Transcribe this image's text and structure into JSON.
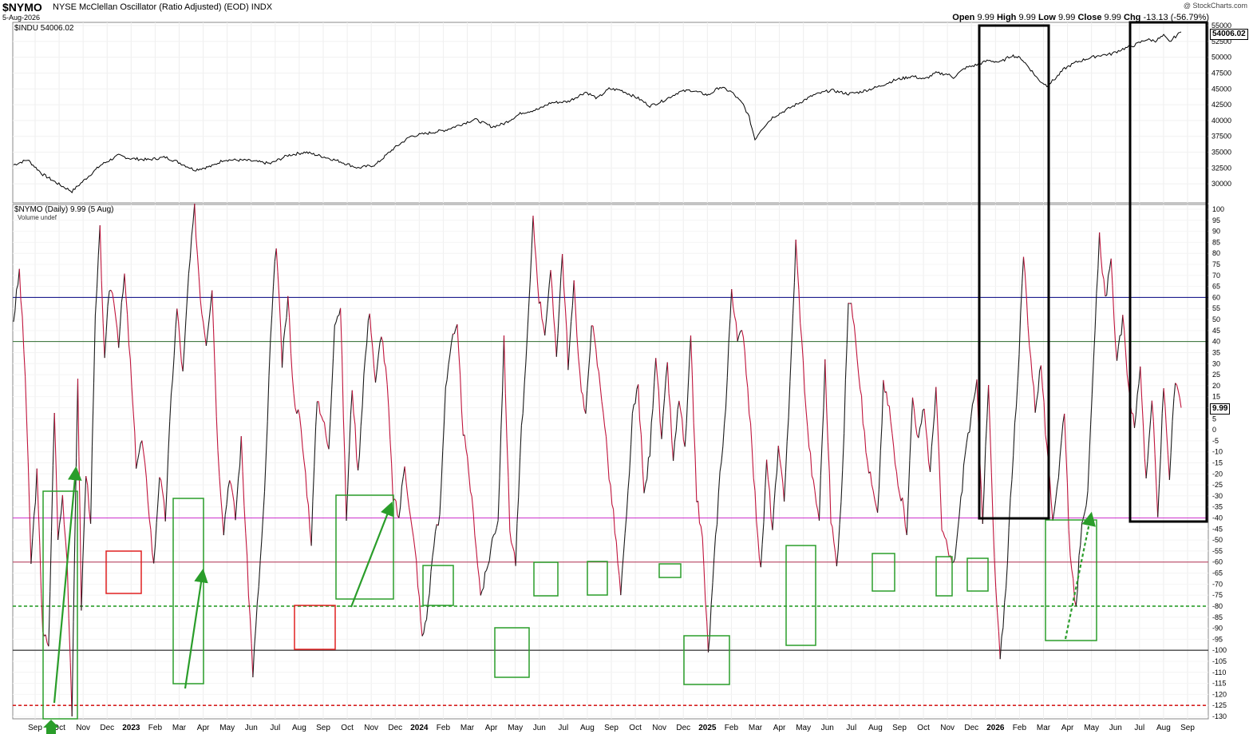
{
  "header": {
    "symbol": "$NYMO",
    "description": "NYSE McClellan Oscillator (Ratio Adjusted) (EOD)  INDX",
    "date": "5-Aug-2026",
    "watermark": "@ StockCharts.com",
    "open_label": "Open",
    "open": "9.99",
    "high_label": "High",
    "high": "9.99",
    "low_label": "Low",
    "low": "9.99",
    "close_label": "Close",
    "close": "9.99",
    "chg_label": "Chg",
    "chg": "-13.13 (-56.79%)"
  },
  "upper_panel": {
    "legend": "$INDU 54006.02",
    "last_value": "54006.02"
  },
  "lower_panel": {
    "legend": "$NYMO (Daily) 9.99 (5 Aug)",
    "volume_note": "Volume undef",
    "last_value": "9.99"
  },
  "chart_data": [
    {
      "type": "line",
      "name": "$INDU",
      "ylim": [
        28000,
        55000
      ],
      "yticks": [
        30000,
        32500,
        35000,
        37500,
        40000,
        42500,
        45000,
        47500,
        50000,
        52500,
        55000
      ],
      "points": [
        [
          0,
          33000
        ],
        [
          0.012,
          33800
        ],
        [
          0.025,
          31500
        ],
        [
          0.04,
          29800
        ],
        [
          0.05,
          28800
        ],
        [
          0.06,
          30500
        ],
        [
          0.075,
          33000
        ],
        [
          0.09,
          34500
        ],
        [
          0.1,
          34000
        ],
        [
          0.115,
          33800
        ],
        [
          0.13,
          34200
        ],
        [
          0.14,
          33500
        ],
        [
          0.155,
          32200
        ],
        [
          0.17,
          32800
        ],
        [
          0.18,
          33800
        ],
        [
          0.2,
          33700
        ],
        [
          0.22,
          33200
        ],
        [
          0.235,
          34500
        ],
        [
          0.25,
          35000
        ],
        [
          0.265,
          34300
        ],
        [
          0.28,
          33500
        ],
        [
          0.295,
          32500
        ],
        [
          0.31,
          33000
        ],
        [
          0.325,
          35500
        ],
        [
          0.34,
          37500
        ],
        [
          0.355,
          38000
        ],
        [
          0.37,
          38500
        ],
        [
          0.385,
          39500
        ],
        [
          0.395,
          40200
        ],
        [
          0.41,
          39000
        ],
        [
          0.42,
          39500
        ],
        [
          0.435,
          41200
        ],
        [
          0.45,
          41800
        ],
        [
          0.46,
          42800
        ],
        [
          0.475,
          43000
        ],
        [
          0.49,
          44500
        ],
        [
          0.5,
          43500
        ],
        [
          0.51,
          45000
        ],
        [
          0.52,
          44800
        ],
        [
          0.535,
          43500
        ],
        [
          0.545,
          42300
        ],
        [
          0.555,
          43000
        ],
        [
          0.57,
          44500
        ],
        [
          0.58,
          44800
        ],
        [
          0.595,
          44000
        ],
        [
          0.605,
          45300
        ],
        [
          0.615,
          44500
        ],
        [
          0.625,
          42500
        ],
        [
          0.63,
          40500
        ],
        [
          0.635,
          37000
        ],
        [
          0.64,
          38500
        ],
        [
          0.65,
          40500
        ],
        [
          0.66,
          41500
        ],
        [
          0.67,
          42500
        ],
        [
          0.685,
          44000
        ],
        [
          0.7,
          44800
        ],
        [
          0.715,
          44200
        ],
        [
          0.725,
          44500
        ],
        [
          0.74,
          45300
        ],
        [
          0.755,
          46400
        ],
        [
          0.77,
          47000
        ],
        [
          0.78,
          46500
        ],
        [
          0.79,
          47500
        ],
        [
          0.8,
          47300
        ],
        [
          0.805,
          46800
        ],
        [
          0.815,
          48300
        ],
        [
          0.825,
          48800
        ],
        [
          0.835,
          49500
        ],
        [
          0.845,
          49200
        ],
        [
          0.855,
          50300
        ],
        [
          0.863,
          49800
        ],
        [
          0.87,
          48300
        ],
        [
          0.878,
          46400
        ],
        [
          0.885,
          45500
        ],
        [
          0.892,
          46600
        ],
        [
          0.9,
          48200
        ],
        [
          0.91,
          49200
        ],
        [
          0.92,
          49800
        ],
        [
          0.93,
          50300
        ],
        [
          0.94,
          50500
        ],
        [
          0.95,
          51300
        ],
        [
          0.96,
          51900
        ],
        [
          0.97,
          52800
        ],
        [
          0.978,
          52600
        ],
        [
          0.985,
          53400
        ],
        [
          0.99,
          52400
        ],
        [
          0.994,
          53100
        ],
        [
          1.0,
          54006
        ]
      ]
    },
    {
      "type": "line",
      "name": "$NYMO",
      "ylim": [
        -130,
        100
      ],
      "yticks": [
        100,
        95,
        90,
        85,
        80,
        75,
        70,
        65,
        60,
        55,
        50,
        45,
        40,
        35,
        30,
        25,
        20,
        15,
        10,
        5,
        0,
        -5,
        -10,
        -15,
        -20,
        -25,
        -30,
        -35,
        -40,
        -45,
        -50,
        -55,
        -60,
        -65,
        -70,
        -75,
        -80,
        -85,
        -90,
        -95,
        -100,
        -105,
        -110,
        -115,
        -120,
        -125,
        -130
      ],
      "horizontal_lines": [
        {
          "value": 60,
          "color": "#000080",
          "style": "solid"
        },
        {
          "value": 40,
          "color": "#2e6b2e",
          "style": "solid"
        },
        {
          "value": -40,
          "color": "#cc33cc",
          "style": "solid"
        },
        {
          "value": -60,
          "color": "#b03050",
          "style": "solid"
        },
        {
          "value": -80,
          "color": "#2a9d2a",
          "style": "dashed"
        },
        {
          "value": -100,
          "color": "#000000",
          "style": "solid"
        },
        {
          "value": -125,
          "color": "#d62020",
          "style": "dashed"
        }
      ],
      "points": [
        [
          0,
          50
        ],
        [
          0.005,
          72
        ],
        [
          0.01,
          25
        ],
        [
          0.015,
          -60
        ],
        [
          0.02,
          -20
        ],
        [
          0.025,
          -90
        ],
        [
          0.03,
          -100
        ],
        [
          0.035,
          10
        ],
        [
          0.038,
          -50
        ],
        [
          0.042,
          -30
        ],
        [
          0.046,
          -60
        ],
        [
          0.05,
          -128
        ],
        [
          0.055,
          25
        ],
        [
          0.058,
          -80
        ],
        [
          0.062,
          -20
        ],
        [
          0.066,
          -40
        ],
        [
          0.07,
          50
        ],
        [
          0.074,
          90
        ],
        [
          0.078,
          30
        ],
        [
          0.082,
          65
        ],
        [
          0.086,
          60
        ],
        [
          0.09,
          40
        ],
        [
          0.095,
          70
        ],
        [
          0.1,
          30
        ],
        [
          0.105,
          -15
        ],
        [
          0.11,
          -5
        ],
        [
          0.115,
          -30
        ],
        [
          0.12,
          -62
        ],
        [
          0.125,
          -20
        ],
        [
          0.13,
          -40
        ],
        [
          0.135,
          15
        ],
        [
          0.14,
          55
        ],
        [
          0.145,
          25
        ],
        [
          0.15,
          70
        ],
        [
          0.155,
          100
        ],
        [
          0.16,
          60
        ],
        [
          0.165,
          40
        ],
        [
          0.17,
          65
        ],
        [
          0.175,
          -10
        ],
        [
          0.18,
          -45
        ],
        [
          0.185,
          -20
        ],
        [
          0.19,
          -40
        ],
        [
          0.195,
          -5
        ],
        [
          0.2,
          -60
        ],
        [
          0.205,
          -110
        ],
        [
          0.21,
          -70
        ],
        [
          0.215,
          -30
        ],
        [
          0.22,
          40
        ],
        [
          0.225,
          85
        ],
        [
          0.23,
          30
        ],
        [
          0.235,
          60
        ],
        [
          0.24,
          15
        ],
        [
          0.245,
          5
        ],
        [
          0.25,
          -20
        ],
        [
          0.255,
          -50
        ],
        [
          0.26,
          15
        ],
        [
          0.265,
          5
        ],
        [
          0.27,
          -10
        ],
        [
          0.275,
          50
        ],
        [
          0.28,
          55
        ],
        [
          0.285,
          -40
        ],
        [
          0.29,
          20
        ],
        [
          0.295,
          -20
        ],
        [
          0.3,
          25
        ],
        [
          0.305,
          55
        ],
        [
          0.31,
          20
        ],
        [
          0.315,
          45
        ],
        [
          0.32,
          20
        ],
        [
          0.325,
          -30
        ],
        [
          0.33,
          -40
        ],
        [
          0.335,
          -15
        ],
        [
          0.34,
          -40
        ],
        [
          0.345,
          -60
        ],
        [
          0.35,
          -95
        ],
        [
          0.355,
          -80
        ],
        [
          0.36,
          -50
        ],
        [
          0.365,
          -40
        ],
        [
          0.37,
          20
        ],
        [
          0.375,
          40
        ],
        [
          0.38,
          45
        ],
        [
          0.385,
          0
        ],
        [
          0.39,
          -20
        ],
        [
          0.395,
          -45
        ],
        [
          0.4,
          -75
        ],
        [
          0.405,
          -65
        ],
        [
          0.41,
          -50
        ],
        [
          0.415,
          -40
        ],
        [
          0.42,
          40
        ],
        [
          0.425,
          -45
        ],
        [
          0.43,
          -60
        ],
        [
          0.435,
          0
        ],
        [
          0.44,
          40
        ],
        [
          0.445,
          95
        ],
        [
          0.45,
          60
        ],
        [
          0.455,
          45
        ],
        [
          0.46,
          70
        ],
        [
          0.465,
          35
        ],
        [
          0.47,
          80
        ],
        [
          0.475,
          30
        ],
        [
          0.48,
          65
        ],
        [
          0.485,
          25
        ],
        [
          0.49,
          5
        ],
        [
          0.495,
          50
        ],
        [
          0.5,
          30
        ],
        [
          0.505,
          10
        ],
        [
          0.51,
          -20
        ],
        [
          0.515,
          -45
        ],
        [
          0.52,
          -75
        ],
        [
          0.525,
          -40
        ],
        [
          0.53,
          5
        ],
        [
          0.535,
          20
        ],
        [
          0.54,
          -30
        ],
        [
          0.545,
          -10
        ],
        [
          0.55,
          35
        ],
        [
          0.555,
          -5
        ],
        [
          0.56,
          30
        ],
        [
          0.565,
          -15
        ],
        [
          0.57,
          15
        ],
        [
          0.575,
          -10
        ],
        [
          0.58,
          40
        ],
        [
          0.585,
          -30
        ],
        [
          0.59,
          -50
        ],
        [
          0.595,
          -102
        ],
        [
          0.6,
          -60
        ],
        [
          0.605,
          -20
        ],
        [
          0.61,
          10
        ],
        [
          0.615,
          65
        ],
        [
          0.62,
          40
        ],
        [
          0.625,
          45
        ],
        [
          0.63,
          10
        ],
        [
          0.635,
          -30
        ],
        [
          0.64,
          -65
        ],
        [
          0.645,
          -15
        ],
        [
          0.65,
          -45
        ],
        [
          0.655,
          -10
        ],
        [
          0.66,
          -30
        ],
        [
          0.665,
          20
        ],
        [
          0.67,
          85
        ],
        [
          0.675,
          40
        ],
        [
          0.68,
          0
        ],
        [
          0.685,
          -25
        ],
        [
          0.69,
          -40
        ],
        [
          0.695,
          30
        ],
        [
          0.7,
          -40
        ],
        [
          0.705,
          -62
        ],
        [
          0.71,
          -20
        ],
        [
          0.715,
          60
        ],
        [
          0.72,
          50
        ],
        [
          0.725,
          20
        ],
        [
          0.73,
          -10
        ],
        [
          0.735,
          -25
        ],
        [
          0.74,
          -40
        ],
        [
          0.745,
          20
        ],
        [
          0.75,
          10
        ],
        [
          0.755,
          -15
        ],
        [
          0.76,
          -30
        ],
        [
          0.765,
          -45
        ],
        [
          0.77,
          15
        ],
        [
          0.775,
          -5
        ],
        [
          0.78,
          10
        ],
        [
          0.785,
          -20
        ],
        [
          0.79,
          20
        ],
        [
          0.795,
          -45
        ],
        [
          0.8,
          -55
        ],
        [
          0.805,
          -62
        ],
        [
          0.81,
          -40
        ],
        [
          0.815,
          -10
        ],
        [
          0.82,
          5
        ],
        [
          0.825,
          20
        ],
        [
          0.83,
          -40
        ],
        [
          0.835,
          20
        ],
        [
          0.84,
          -60
        ],
        [
          0.845,
          -105
        ],
        [
          0.85,
          -70
        ],
        [
          0.855,
          -20
        ],
        [
          0.86,
          20
        ],
        [
          0.865,
          80
        ],
        [
          0.87,
          40
        ],
        [
          0.875,
          10
        ],
        [
          0.88,
          30
        ],
        [
          0.885,
          -10
        ],
        [
          0.89,
          -40
        ],
        [
          0.895,
          -20
        ],
        [
          0.9,
          10
        ],
        [
          0.905,
          -60
        ],
        [
          0.91,
          -80
        ],
        [
          0.915,
          -40
        ],
        [
          0.92,
          -30
        ],
        [
          0.925,
          30
        ],
        [
          0.93,
          88
        ],
        [
          0.935,
          60
        ],
        [
          0.94,
          75
        ],
        [
          0.945,
          30
        ],
        [
          0.95,
          50
        ],
        [
          0.955,
          20
        ],
        [
          0.96,
          0
        ],
        [
          0.965,
          30
        ],
        [
          0.97,
          -25
        ],
        [
          0.975,
          15
        ],
        [
          0.98,
          -40
        ],
        [
          0.985,
          20
        ],
        [
          0.99,
          -20
        ],
        [
          0.995,
          22
        ],
        [
          1.0,
          9.99
        ]
      ]
    }
  ],
  "x_axis": {
    "labels": [
      "Sep",
      "Oct",
      "Nov",
      "Dec",
      "2023",
      "Feb",
      "Mar",
      "Apr",
      "May",
      "Jun",
      "Jul",
      "Aug",
      "Sep",
      "Oct",
      "Nov",
      "Dec",
      "2024",
      "Feb",
      "Mar",
      "Apr",
      "May",
      "Jun",
      "Jul",
      "Aug",
      "Sep",
      "Oct",
      "Nov",
      "Dec",
      "2025",
      "Feb",
      "Mar",
      "Apr",
      "May",
      "Jun",
      "Jul",
      "Aug",
      "Sep",
      "Oct",
      "Nov",
      "Dec",
      "2026",
      "Feb",
      "Mar",
      "Apr",
      "May",
      "Jun",
      "Jul",
      "Aug",
      "Sep"
    ],
    "bold_labels": [
      "2023",
      "2024",
      "2025",
      "2026"
    ]
  },
  "annotations": {
    "green_box_color": "#2a9d2a",
    "red_box_color": "#e02020",
    "black_box_color": "#000000",
    "arrow_color": "#2a9d2a"
  }
}
